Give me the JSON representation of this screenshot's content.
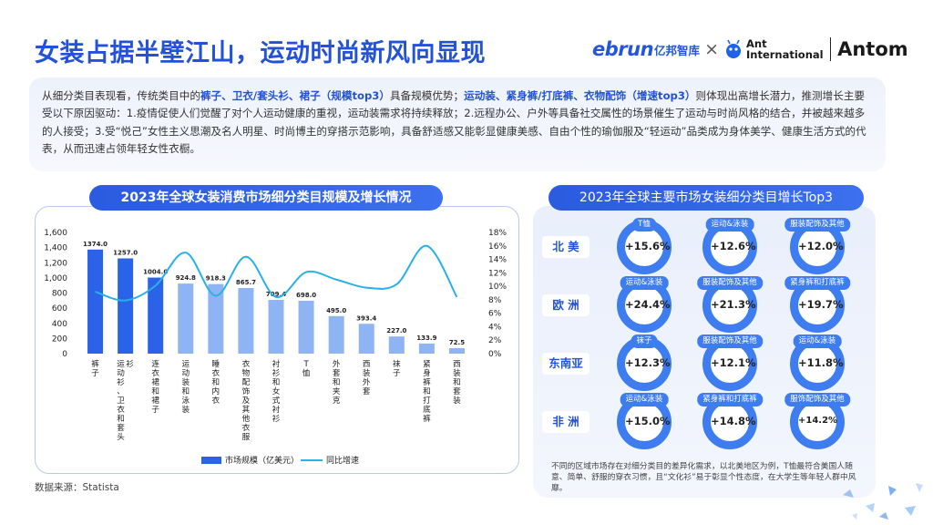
{
  "title": "女装占据半壁江山，运动时尚新风向显现",
  "logos": {
    "ebrun": "ebrun",
    "ebrun_cn": "亿邦智库",
    "times": "×",
    "ant_line1": "Ant",
    "ant_line2": "International",
    "antom": "Antom"
  },
  "intro": {
    "p1": "从细分类目表现看，传统类目中的",
    "h1": "裤子、卫衣/套头衫、裙子（规模top3）",
    "p2": "具备规模优势；",
    "h2": "运动装、紧身裤/打底裤、衣物配饰（增速top3）",
    "p3": "则体现出高增长潜力，推测增长主要受以下原因驱动：1.疫情促使人们觉醒了对个人运动健康的重视，运动装需求将持续释放；2.远程办公、户外等具备社交属性的场景催生了运动与时尚风格的结合，并被越来越多的人接受；3.受“悦己”女性主义思潮及名人明星、时尚博主的穿搭示范影响，具备舒适感又能彰显健康美感、自由个性的瑜伽服及“轻运动”品类成为身体美学、健康生活方式的代表，从而迅速占领年轻女性衣橱。"
  },
  "left_title": "2023年全球女装消费市场细分类目规模及增长情况",
  "right_title": "2023年全球主要市场女装细分类目增长Top3",
  "source": "数据来源：Statista",
  "note": "不同的区域市场存在对细分类目的差异化需求，以北美地区为例，T恤最符合美国人随意、简单、舒服的穿衣习惯，且“文化衫”易于彰显个性态度，在大学生等年轻人群中风靡。",
  "colors": {
    "bar": "#2a63e8",
    "bar_light": "#c9daf8",
    "line": "#29b0e6",
    "ring": "#3d7df0",
    "accent": "#2352d9"
  },
  "chart_data": {
    "type": "bar",
    "title": "2023年全球女装消费市场细分类目规模及增长情况",
    "categories": [
      "裤子",
      "运动衫、卫衣和套头衫",
      "连衣裙和裙子",
      "运动装和泳装",
      "睡衣和内衣",
      "衣物配饰及其他衣服",
      "衬衫和女式衬衫",
      "T恤",
      "外套和夹克",
      "西装外套",
      "袜子",
      "紧身裤和打底裤",
      "西装和套装"
    ],
    "series": [
      {
        "name": "市场规模（亿美元）",
        "type": "bar",
        "axis": "left",
        "values": [
          1374.0,
          1257.0,
          1004.0,
          924.8,
          918.3,
          865.7,
          709.4,
          698.0,
          495.0,
          393.4,
          227.0,
          133.9,
          72.5
        ],
        "labels": [
          "1374.0",
          "1257.0",
          "1004.0",
          "924.8",
          "918.3",
          "865.7",
          "709.4",
          "698.0",
          "495.0",
          "393.4",
          "227.0",
          "133.9",
          "72.5"
        ]
      },
      {
        "name": "同比增速",
        "type": "line",
        "axis": "right",
        "values": [
          0.092,
          0.079,
          0.101,
          0.15,
          0.086,
          0.144,
          0.084,
          0.121,
          0.11,
          0.098,
          0.103,
          0.16,
          0.084
        ]
      }
    ],
    "ylim_left": [
      0,
      1600
    ],
    "yticks_left": [
      "0",
      "200",
      "400",
      "600",
      "800",
      "1,000",
      "1,200",
      "1,400",
      "1,600"
    ],
    "ylim_right": [
      0,
      0.18
    ],
    "yticks_right": [
      "0%",
      "2%",
      "4%",
      "6%",
      "8%",
      "10%",
      "12%",
      "14%",
      "16%",
      "18%"
    ],
    "highlight_count": 3,
    "grid": false,
    "legend_position": "bottom"
  },
  "regions": [
    {
      "name": "北 美",
      "items": [
        {
          "label": "T恤",
          "value": "+15.6%"
        },
        {
          "label": "运动&泳装",
          "value": "+12.6%"
        },
        {
          "label": "服装配饰及其他",
          "value": "+12.0%"
        }
      ]
    },
    {
      "name": "欧 洲",
      "items": [
        {
          "label": "运动&泳装",
          "value": "+24.4%"
        },
        {
          "label": "服装配饰及其他",
          "value": "+21.3%"
        },
        {
          "label": "紧身裤和打底裤",
          "value": "+19.7%"
        }
      ]
    },
    {
      "name": "东南亚",
      "items": [
        {
          "label": "袜子",
          "value": "+12.3%"
        },
        {
          "label": "服装配饰及其他",
          "value": "+12.1%"
        },
        {
          "label": "运动&泳装",
          "value": "+11.8%"
        }
      ]
    },
    {
      "name": "非 洲",
      "items": [
        {
          "label": "运动&泳装",
          "value": "+15.0%"
        },
        {
          "label": "紧身裤和打底裤",
          "value": "+14.8%"
        },
        {
          "label": "服饰配饰及其他",
          "value": "+14.2%"
        }
      ]
    }
  ]
}
